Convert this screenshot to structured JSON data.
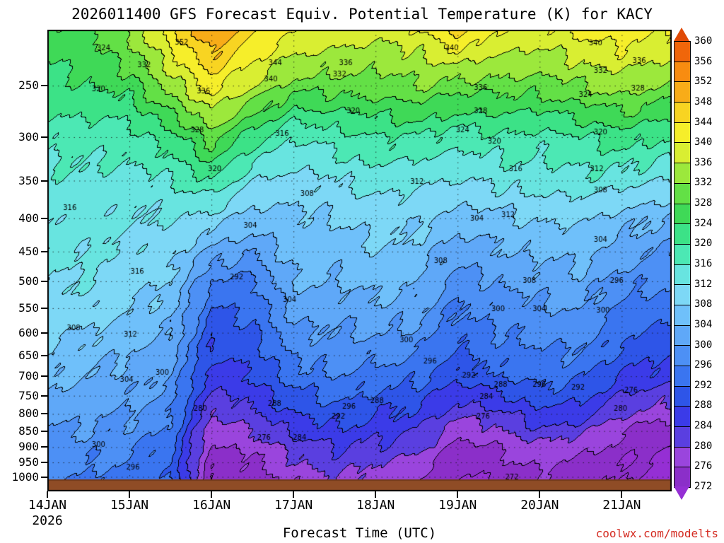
{
  "watermark": "coolwx.com/modelts",
  "chart_data": {
    "type": "heatmap",
    "title": "2026011400 GFS Forecast Equiv. Potential Temperature (K) for KACY",
    "xlabel": "Forecast Time (UTC)",
    "ylabel": "",
    "units": "K",
    "x_year_label": "2026",
    "x_ticks": [
      "14JAN",
      "15JAN",
      "16JAN",
      "17JAN",
      "18JAN",
      "19JAN",
      "20JAN",
      "21JAN"
    ],
    "x_span_days": 7.6,
    "y_ticks": [
      250,
      300,
      350,
      400,
      450,
      500,
      550,
      600,
      650,
      700,
      750,
      800,
      850,
      900,
      950,
      1000
    ],
    "y_axis_type": "log-pressure (hPa), 250 top to 1000 bottom",
    "grid_lines": "dotted, at each pressure tick and each day tick",
    "levels": [
      272,
      276,
      280,
      284,
      288,
      292,
      296,
      300,
      304,
      308,
      312,
      316,
      320,
      324,
      328,
      332,
      336,
      340,
      344,
      348,
      352,
      356,
      360
    ],
    "bin_colors": [
      "#8b2fc9",
      "#9a45dd",
      "#5a3fe0",
      "#3b3be8",
      "#2e55e8",
      "#3a75f0",
      "#4d90f5",
      "#5fa8f8",
      "#6fc0fa",
      "#7dd8f6",
      "#68e4e0",
      "#4ce8b4",
      "#3ce287",
      "#3fd957",
      "#63e046",
      "#9ce83c",
      "#d9ee32",
      "#f6ee2a",
      "#f8d422",
      "#f8ac18",
      "#f88c10",
      "#f0660a"
    ],
    "under_color": "#952fd4",
    "over_color": "#e04a06",
    "surface_color": "#8f4c26",
    "grid": {
      "times_days": [
        0,
        0.5,
        1,
        1.5,
        2,
        2.5,
        3,
        3.5,
        4,
        4.5,
        5,
        5.5,
        6,
        6.5,
        7,
        7.5
      ],
      "pressures_hPa": [
        200,
        250,
        300,
        350,
        400,
        500,
        600,
        700,
        800,
        850,
        925,
        1050
      ],
      "values": [
        [
          327,
          328,
          334,
          344,
          354,
          346,
          342,
          340,
          338,
          340,
          348,
          342,
          340,
          342,
          344,
          342
        ],
        [
          322,
          324,
          326,
          334,
          342,
          336,
          330,
          330,
          330,
          332,
          330,
          330,
          330,
          332,
          334,
          332
        ],
        [
          317,
          318,
          318,
          322,
          330,
          322,
          316,
          318,
          320,
          320,
          318,
          319,
          318,
          320,
          322,
          320
        ],
        [
          315,
          315,
          314,
          316,
          320,
          312,
          310,
          312,
          314,
          313,
          312,
          313,
          314,
          315,
          314,
          312
        ],
        [
          313,
          314,
          312,
          312,
          310,
          306,
          307,
          308,
          310,
          309,
          306,
          307,
          308,
          309,
          306,
          304
        ],
        [
          312,
          312,
          310,
          308,
          296,
          295,
          304,
          304,
          306,
          305,
          298,
          300,
          302,
          303,
          298,
          296
        ],
        [
          309,
          308,
          306,
          304,
          289,
          291,
          299,
          300,
          300,
          299,
          293,
          296,
          297,
          298,
          293,
          291
        ],
        [
          305,
          304,
          302,
          300,
          286,
          288,
          294,
          296,
          294,
          293,
          289,
          292,
          294,
          293,
          288,
          286
        ],
        [
          302,
          301,
          300,
          297,
          280,
          283,
          288,
          290,
          288,
          287,
          281,
          283,
          287,
          286,
          280,
          278
        ],
        [
          300,
          300,
          299,
          295,
          277,
          280,
          285,
          287,
          286,
          284,
          277,
          279,
          283,
          281,
          276,
          274
        ],
        [
          298,
          297,
          296,
          293,
          274,
          276,
          280,
          283,
          282,
          280,
          273,
          275,
          278,
          276,
          273,
          272
        ],
        [
          296,
          295,
          294,
          292,
          271,
          273,
          276,
          279,
          276,
          274,
          271,
          272,
          274,
          272,
          271,
          270
        ]
      ]
    },
    "contour_labels": [
      {
        "v": "324",
        "x": 0.09,
        "y": 0.04
      },
      {
        "v": "332",
        "x": 0.155,
        "y": 0.077
      },
      {
        "v": "352",
        "x": 0.215,
        "y": 0.028
      },
      {
        "v": "344",
        "x": 0.365,
        "y": 0.072
      },
      {
        "v": "340",
        "x": 0.358,
        "y": 0.108
      },
      {
        "v": "336",
        "x": 0.478,
        "y": 0.072
      },
      {
        "v": "332",
        "x": 0.468,
        "y": 0.097
      },
      {
        "v": "340",
        "x": 0.648,
        "y": 0.04
      },
      {
        "v": "340",
        "x": 0.878,
        "y": 0.03
      },
      {
        "v": "336",
        "x": 0.948,
        "y": 0.068
      },
      {
        "v": "332",
        "x": 0.886,
        "y": 0.09
      },
      {
        "v": "328",
        "x": 0.946,
        "y": 0.127
      },
      {
        "v": "336",
        "x": 0.25,
        "y": 0.134
      },
      {
        "v": "320",
        "x": 0.082,
        "y": 0.13
      },
      {
        "v": "336",
        "x": 0.694,
        "y": 0.126
      },
      {
        "v": "324",
        "x": 0.862,
        "y": 0.142
      },
      {
        "v": "320",
        "x": 0.49,
        "y": 0.177
      },
      {
        "v": "328",
        "x": 0.694,
        "y": 0.177
      },
      {
        "v": "328",
        "x": 0.24,
        "y": 0.218
      },
      {
        "v": "324",
        "x": 0.665,
        "y": 0.218
      },
      {
        "v": "320",
        "x": 0.886,
        "y": 0.222
      },
      {
        "v": "316",
        "x": 0.376,
        "y": 0.226
      },
      {
        "v": "320",
        "x": 0.716,
        "y": 0.242
      },
      {
        "v": "316",
        "x": 0.75,
        "y": 0.302
      },
      {
        "v": "320",
        "x": 0.268,
        "y": 0.302
      },
      {
        "v": "312",
        "x": 0.88,
        "y": 0.302
      },
      {
        "v": "312",
        "x": 0.592,
        "y": 0.33
      },
      {
        "v": "308",
        "x": 0.416,
        "y": 0.356
      },
      {
        "v": "316",
        "x": 0.036,
        "y": 0.387
      },
      {
        "v": "308",
        "x": 0.886,
        "y": 0.348
      },
      {
        "v": "312",
        "x": 0.738,
        "y": 0.402
      },
      {
        "v": "304",
        "x": 0.325,
        "y": 0.425
      },
      {
        "v": "304",
        "x": 0.688,
        "y": 0.41
      },
      {
        "v": "304",
        "x": 0.886,
        "y": 0.456
      },
      {
        "v": "308",
        "x": 0.63,
        "y": 0.502
      },
      {
        "v": "316",
        "x": 0.144,
        "y": 0.525
      },
      {
        "v": "292",
        "x": 0.303,
        "y": 0.537
      },
      {
        "v": "308",
        "x": 0.772,
        "y": 0.545
      },
      {
        "v": "296",
        "x": 0.912,
        "y": 0.545
      },
      {
        "v": "304",
        "x": 0.388,
        "y": 0.586
      },
      {
        "v": "300",
        "x": 0.722,
        "y": 0.606
      },
      {
        "v": "304",
        "x": 0.788,
        "y": 0.606
      },
      {
        "v": "300",
        "x": 0.89,
        "y": 0.609
      },
      {
        "v": "308",
        "x": 0.042,
        "y": 0.647
      },
      {
        "v": "312",
        "x": 0.133,
        "y": 0.66
      },
      {
        "v": "300",
        "x": 0.575,
        "y": 0.673
      },
      {
        "v": "296",
        "x": 0.613,
        "y": 0.719
      },
      {
        "v": "300",
        "x": 0.184,
        "y": 0.744
      },
      {
        "v": "304",
        "x": 0.127,
        "y": 0.759
      },
      {
        "v": "292",
        "x": 0.675,
        "y": 0.75
      },
      {
        "v": "288",
        "x": 0.726,
        "y": 0.77
      },
      {
        "v": "296",
        "x": 0.788,
        "y": 0.77
      },
      {
        "v": "292",
        "x": 0.85,
        "y": 0.775
      },
      {
        "v": "284",
        "x": 0.703,
        "y": 0.796
      },
      {
        "v": "288",
        "x": 0.528,
        "y": 0.805
      },
      {
        "v": "276",
        "x": 0.935,
        "y": 0.781
      },
      {
        "v": "280",
        "x": 0.918,
        "y": 0.821
      },
      {
        "v": "288",
        "x": 0.364,
        "y": 0.811
      },
      {
        "v": "280",
        "x": 0.245,
        "y": 0.821
      },
      {
        "v": "296",
        "x": 0.483,
        "y": 0.817
      },
      {
        "v": "292",
        "x": 0.466,
        "y": 0.839
      },
      {
        "v": "276",
        "x": 0.698,
        "y": 0.839
      },
      {
        "v": "276",
        "x": 0.347,
        "y": 0.885
      },
      {
        "v": "284",
        "x": 0.404,
        "y": 0.885
      },
      {
        "v": "300",
        "x": 0.082,
        "y": 0.9
      },
      {
        "v": "296",
        "x": 0.137,
        "y": 0.949
      },
      {
        "v": "272",
        "x": 0.744,
        "y": 0.97
      }
    ]
  }
}
